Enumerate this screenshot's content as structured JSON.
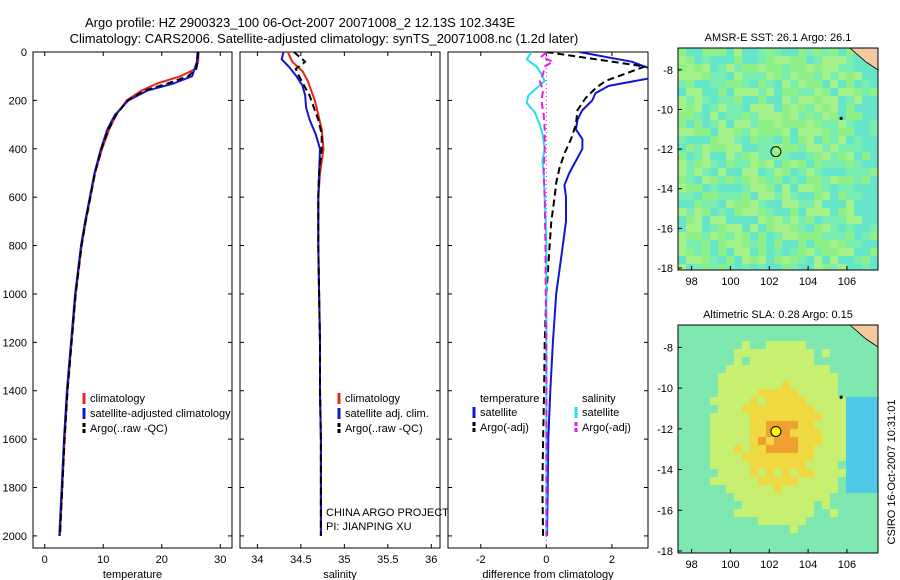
{
  "header": {
    "title_line1": "Argo profile: HZ 2900323_100 06-Oct-2007 20071008_2 12.13S 102.343E",
    "title_line2": "Climatology: CARS2006. Satellite-adjusted climatology: synTS_20071008.nc (1.2d later)"
  },
  "side_label": "CSIRO 16-Oct-2007 10:31:01",
  "colors": {
    "red": "#e8241c",
    "blue": "#1414d4",
    "black": "#000000",
    "cyan": "#22e0e8",
    "magenta": "#e020e0"
  },
  "chart_data": [
    {
      "type": "line",
      "id": "temperature",
      "xlabel": "temperature",
      "ylabel": "",
      "xlim": [
        -2,
        32
      ],
      "ylim": [
        2050,
        0
      ],
      "x_ticks": [
        0,
        10,
        20,
        30
      ],
      "y_ticks": [
        0,
        200,
        400,
        600,
        800,
        1000,
        1200,
        1400,
        1600,
        1800,
        2000
      ],
      "legend": [
        "climatology",
        "satellite-adjusted climatology",
        "Argo(..raw -QC)"
      ],
      "series": [
        {
          "name": "climatology",
          "color": "red",
          "dash": "solid",
          "depth": [
            0,
            40,
            70,
            100,
            130,
            160,
            200,
            260,
            320,
            400,
            500,
            600,
            700,
            800,
            1000,
            1200,
            1400,
            1600,
            1800,
            2000
          ],
          "values": [
            26.3,
            26.2,
            25.8,
            23.2,
            19.2,
            16.5,
            14.0,
            12.2,
            11.0,
            9.8,
            8.6,
            7.8,
            7.0,
            6.3,
            5.3,
            4.6,
            3.9,
            3.4,
            3.0,
            2.6
          ]
        },
        {
          "name": "satellite-adjusted climatology",
          "color": "blue",
          "dash": "solid",
          "depth": [
            0,
            40,
            70,
            100,
            130,
            160,
            200,
            260,
            320,
            400,
            500,
            600,
            700,
            800,
            1000,
            1200,
            1400,
            1600,
            1800,
            2000
          ],
          "values": [
            26.1,
            26.0,
            25.6,
            25.2,
            22.0,
            17.5,
            14.3,
            12.0,
            10.7,
            9.6,
            8.5,
            7.7,
            6.9,
            6.2,
            5.2,
            4.5,
            3.8,
            3.3,
            2.9,
            2.5
          ]
        },
        {
          "name": "Argo(..raw -QC)",
          "color": "black",
          "dash": "dashed",
          "depth": [
            0,
            40,
            70,
            100,
            130,
            160,
            200,
            260,
            320,
            400,
            500,
            600,
            700,
            800,
            1000,
            1200,
            1400,
            1600,
            1800,
            2000
          ],
          "values": [
            26.2,
            26.1,
            25.9,
            24.5,
            21.0,
            17.0,
            14.2,
            12.2,
            10.9,
            9.7,
            8.6,
            7.8,
            7.0,
            6.3,
            5.3,
            4.6,
            3.9,
            3.4,
            3.0,
            2.6
          ]
        }
      ]
    },
    {
      "type": "line",
      "id": "salinity",
      "xlabel": "salinity",
      "ylabel": "",
      "xlim": [
        33.8,
        36.1
      ],
      "ylim": [
        2050,
        0
      ],
      "x_ticks": [
        34,
        34.5,
        35,
        35.5,
        36
      ],
      "y_ticks": [
        0,
        200,
        400,
        600,
        800,
        1000,
        1200,
        1400,
        1600,
        1800,
        2000
      ],
      "legend": [
        "climatology",
        "satellite adj. clim.",
        "Argo(..raw -QC)"
      ],
      "annotation": [
        "CHINA ARGO PROJECT",
        "PI: JIANPING XU"
      ],
      "series": [
        {
          "name": "climatology",
          "color": "red",
          "dash": "solid",
          "depth": [
            0,
            40,
            80,
            120,
            160,
            200,
            260,
            320,
            400,
            500,
            600,
            800,
            1000,
            1200,
            1400,
            1600,
            1800,
            2000
          ],
          "values": [
            34.35,
            34.4,
            34.52,
            34.58,
            34.62,
            34.66,
            34.7,
            34.74,
            34.76,
            34.72,
            34.7,
            34.7,
            34.71,
            34.72,
            34.72,
            34.73,
            34.73,
            34.73
          ]
        },
        {
          "name": "satellite adj. clim.",
          "color": "blue",
          "dash": "solid",
          "depth": [
            0,
            30,
            60,
            100,
            140,
            180,
            230,
            280,
            340,
            400,
            500,
            600,
            800,
            1000,
            1200,
            1400,
            1600,
            1800,
            2000
          ],
          "values": [
            34.3,
            34.28,
            34.36,
            34.45,
            34.52,
            34.55,
            34.56,
            34.6,
            34.67,
            34.72,
            34.71,
            34.7,
            34.7,
            34.71,
            34.72,
            34.72,
            34.73,
            34.73,
            34.73
          ]
        },
        {
          "name": "Argo(..raw -QC)",
          "color": "black",
          "dash": "dashed",
          "depth": [
            0,
            40,
            70,
            100,
            140,
            180,
            220,
            280,
            340,
            400,
            500,
            600,
            800,
            1000,
            1200,
            1400,
            1600,
            1800,
            2000
          ],
          "values": [
            34.42,
            34.55,
            34.44,
            34.48,
            34.54,
            34.6,
            34.64,
            34.7,
            34.74,
            34.74,
            34.71,
            34.7,
            34.7,
            34.71,
            34.72,
            34.72,
            34.73,
            34.73,
            34.73
          ]
        }
      ]
    },
    {
      "type": "line",
      "id": "difference",
      "xlabel": "difference from climatology",
      "ylabel": "",
      "xlim": [
        -3,
        3.1
      ],
      "ylim": [
        2050,
        0
      ],
      "x_ticks": [
        -2,
        0,
        2
      ],
      "y_ticks": [
        0,
        200,
        400,
        600,
        800,
        1000,
        1200,
        1400,
        1600,
        1800,
        2000
      ],
      "legend_groups": [
        {
          "title": "temperature",
          "items": [
            {
              "label": "satellite",
              "color": "blue",
              "dash": "solid"
            },
            {
              "label": "Argo(-adj)",
              "color": "black",
              "dash": "dashed"
            }
          ]
        },
        {
          "title": "salinity",
          "items": [
            {
              "label": "satellite",
              "color": "cyan",
              "dash": "solid"
            },
            {
              "label": "Argo(-adj)",
              "color": "magenta",
              "dash": "dashed"
            }
          ]
        }
      ],
      "series": [
        {
          "name": "temperature satellite",
          "color": "blue",
          "dash": "solid",
          "depth": [
            0,
            40,
            80,
            110,
            140,
            170,
            200,
            240,
            280,
            320,
            360,
            400,
            450,
            500,
            550,
            600,
            700,
            800,
            900,
            1000,
            1200,
            1400,
            1600,
            1800,
            2000
          ],
          "values": [
            1.0,
            2.6,
            3.4,
            3.1,
            1.9,
            1.5,
            1.4,
            1.1,
            0.95,
            0.9,
            1.1,
            1.1,
            0.9,
            0.7,
            0.55,
            0.6,
            0.6,
            0.5,
            0.4,
            0.3,
            0.2,
            0.12,
            0.06,
            0.04,
            0.02
          ]
        },
        {
          "name": "temperature Argo(-adj)",
          "color": "black",
          "dash": "dashed",
          "depth": [
            0,
            60,
            90,
            120,
            150,
            190,
            240,
            300,
            360,
            420,
            480,
            540,
            600,
            700,
            800,
            900,
            1000,
            1200,
            1400,
            1600,
            1800,
            2000
          ],
          "values": [
            0.0,
            3.0,
            2.4,
            1.8,
            1.5,
            1.2,
            0.95,
            0.9,
            0.75,
            0.55,
            0.4,
            0.3,
            0.25,
            0.15,
            0.1,
            0.05,
            0.0,
            -0.05,
            -0.07,
            -0.1,
            -0.12,
            -0.1
          ]
        },
        {
          "name": "salinity satellite",
          "color": "cyan",
          "dash": "solid",
          "depth": [
            0,
            30,
            60,
            90,
            120,
            150,
            180,
            210,
            250,
            300,
            350,
            400,
            450,
            500,
            600,
            700,
            800,
            1000,
            1200,
            1400,
            1600,
            1800,
            2000
          ],
          "values": [
            -0.45,
            -0.6,
            -0.3,
            -0.15,
            -0.05,
            -0.3,
            -0.55,
            -0.6,
            -0.35,
            -0.2,
            -0.1,
            -0.05,
            -0.12,
            -0.08,
            -0.05,
            -0.02,
            0.0,
            0.0,
            0.0,
            0.0,
            0.0,
            0.0,
            0.0
          ]
        },
        {
          "name": "salinity Argo(-adj)",
          "color": "magenta",
          "dash": "dashed",
          "depth": [
            0,
            20,
            40,
            60,
            90,
            120,
            160,
            200,
            260,
            320,
            400,
            500,
            600,
            800,
            1000,
            1200,
            1400,
            1600,
            1800,
            2000
          ],
          "values": [
            0.0,
            -0.15,
            0.2,
            -0.05,
            -0.1,
            -0.2,
            -0.1,
            -0.15,
            -0.08,
            -0.05,
            -0.05,
            -0.08,
            -0.05,
            -0.03,
            -0.02,
            0.0,
            0.0,
            0.0,
            0.0,
            0.0
          ]
        }
      ]
    },
    {
      "type": "heatmap",
      "id": "sst_map",
      "title": "AMSR-E SST: 26.1  Argo: 26.1",
      "xlim": [
        97.3,
        107.6
      ],
      "ylim": [
        -18.1,
        -6.9
      ],
      "x_ticks": [
        98,
        100,
        102,
        104,
        106
      ],
      "y_ticks": [
        -8,
        -10,
        -12,
        -14,
        -16,
        -18
      ],
      "profile_location": {
        "lon": 102.343,
        "lat": -12.13
      },
      "marker_fill": "none",
      "colors": [
        "#8ff08a",
        "#7aeeb0",
        "#a6f28a",
        "#66e6c8",
        "#b8f07e"
      ]
    },
    {
      "type": "heatmap",
      "id": "sla_map",
      "title": "Altimetric SLA: 0.28  Argo: 0.15",
      "xlim": [
        97.3,
        107.6
      ],
      "ylim": [
        -18.1,
        -6.9
      ],
      "x_ticks": [
        98,
        100,
        102,
        104,
        106
      ],
      "y_ticks": [
        -8,
        -10,
        -12,
        -14,
        -16,
        -18
      ],
      "profile_location": {
        "lon": 102.343,
        "lat": -12.13
      },
      "marker_fill": "#ffff00",
      "colors": [
        "#7ee8b0",
        "#c8f070",
        "#f0d840",
        "#f0a030",
        "#50c8e8"
      ]
    }
  ]
}
